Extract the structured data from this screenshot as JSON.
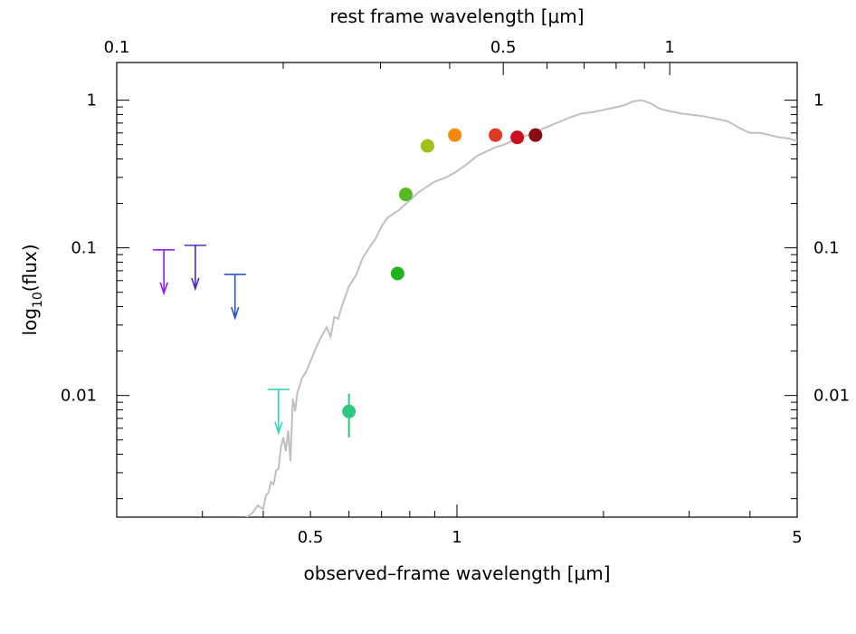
{
  "chart_data": {
    "type": "scatter",
    "title": "",
    "xlabel": "observed–frame wavelength [μm]",
    "x2label": "rest frame wavelength [μm]",
    "ylabel_main": "log",
    "ylabel_sub": "10",
    "ylabel_rest": "(flux)",
    "x_scale": "log",
    "y_scale": "log",
    "xlim": [
      0.2,
      5.0
    ],
    "x2lim": [
      0.1,
      1.7
    ],
    "ylim": [
      0.0015,
      1.8
    ],
    "bottom_ticks": [
      {
        "label": "0.5",
        "value": 0.5
      },
      {
        "label": "1",
        "value": 1
      },
      {
        "label": "5",
        "value": 5
      }
    ],
    "top_ticks": [
      {
        "label": "0.1",
        "value": 0.1
      },
      {
        "label": "0.5",
        "value": 0.5
      },
      {
        "label": "1",
        "value": 1
      }
    ],
    "left_ticks": [
      {
        "label": "1",
        "value": 1
      },
      {
        "label": "0.1",
        "value": 0.1
      },
      {
        "label": "0.01",
        "value": 0.01
      }
    ],
    "right_ticks": [
      {
        "label": "1",
        "value": 1
      },
      {
        "label": "0.1",
        "value": 0.1
      },
      {
        "label": "0.01",
        "value": 0.01
      }
    ],
    "detections": [
      {
        "x": 0.6,
        "y": 0.0078,
        "err_low": 0.0052,
        "err_high": 0.0103,
        "color": "#2ec883"
      },
      {
        "x": 0.755,
        "y": 0.067,
        "color": "#22b21e"
      },
      {
        "x": 0.785,
        "y": 0.23,
        "color": "#55bb22"
      },
      {
        "x": 0.87,
        "y": 0.49,
        "color": "#9cc218"
      },
      {
        "x": 0.99,
        "y": 0.58,
        "color": "#f28a10"
      },
      {
        "x": 1.2,
        "y": 0.58,
        "color": "#dd3a26"
      },
      {
        "x": 1.33,
        "y": 0.56,
        "color": "#cc1020"
      },
      {
        "x": 1.45,
        "y": 0.58,
        "color": "#8b0b15"
      }
    ],
    "upper_limits": [
      {
        "x": 0.25,
        "y": 0.097,
        "color": "#8f20f2"
      },
      {
        "x": 0.29,
        "y": 0.104,
        "color": "#4a2bc2"
      },
      {
        "x": 0.35,
        "y": 0.066,
        "color": "#2a56cc"
      },
      {
        "x": 0.43,
        "y": 0.011,
        "color": "#34d6c0"
      }
    ],
    "model_sed": {
      "color": "#c0c0c0",
      "x": [
        0.36,
        0.37,
        0.38,
        0.39,
        0.4,
        0.405,
        0.41,
        0.415,
        0.42,
        0.425,
        0.43,
        0.435,
        0.44,
        0.445,
        0.45,
        0.455,
        0.46,
        0.465,
        0.47,
        0.475,
        0.48,
        0.49,
        0.5,
        0.51,
        0.52,
        0.53,
        0.54,
        0.55,
        0.56,
        0.57,
        0.58,
        0.6,
        0.62,
        0.64,
        0.66,
        0.68,
        0.7,
        0.72,
        0.74,
        0.76,
        0.78,
        0.8,
        0.83,
        0.86,
        0.9,
        0.95,
        1.0,
        1.05,
        1.1,
        1.15,
        1.2,
        1.25,
        1.3,
        1.35,
        1.4,
        1.45,
        1.5,
        1.6,
        1.7,
        1.8,
        1.9,
        2.0,
        2.1,
        2.2,
        2.3,
        2.4,
        2.5,
        2.6,
        2.7,
        2.8,
        2.9,
        3.0,
        3.2,
        3.4,
        3.6,
        3.8,
        4.0,
        4.2,
        4.4,
        4.6,
        4.8,
        5.0
      ],
      "y": [
        0.0012,
        0.0015,
        0.0016,
        0.0018,
        0.0017,
        0.0021,
        0.0022,
        0.0026,
        0.0025,
        0.0031,
        0.0032,
        0.0045,
        0.0052,
        0.0042,
        0.0058,
        0.0036,
        0.0095,
        0.0078,
        0.0105,
        0.0115,
        0.013,
        0.0145,
        0.017,
        0.02,
        0.023,
        0.026,
        0.029,
        0.025,
        0.034,
        0.033,
        0.04,
        0.055,
        0.065,
        0.085,
        0.1,
        0.115,
        0.14,
        0.16,
        0.17,
        0.18,
        0.195,
        0.21,
        0.235,
        0.255,
        0.28,
        0.3,
        0.33,
        0.37,
        0.42,
        0.45,
        0.48,
        0.5,
        0.53,
        0.56,
        0.58,
        0.6,
        0.64,
        0.7,
        0.76,
        0.81,
        0.83,
        0.86,
        0.89,
        0.92,
        0.98,
        1.0,
        0.95,
        0.88,
        0.85,
        0.83,
        0.81,
        0.8,
        0.78,
        0.75,
        0.72,
        0.65,
        0.6,
        0.6,
        0.58,
        0.56,
        0.55,
        0.53
      ]
    }
  }
}
